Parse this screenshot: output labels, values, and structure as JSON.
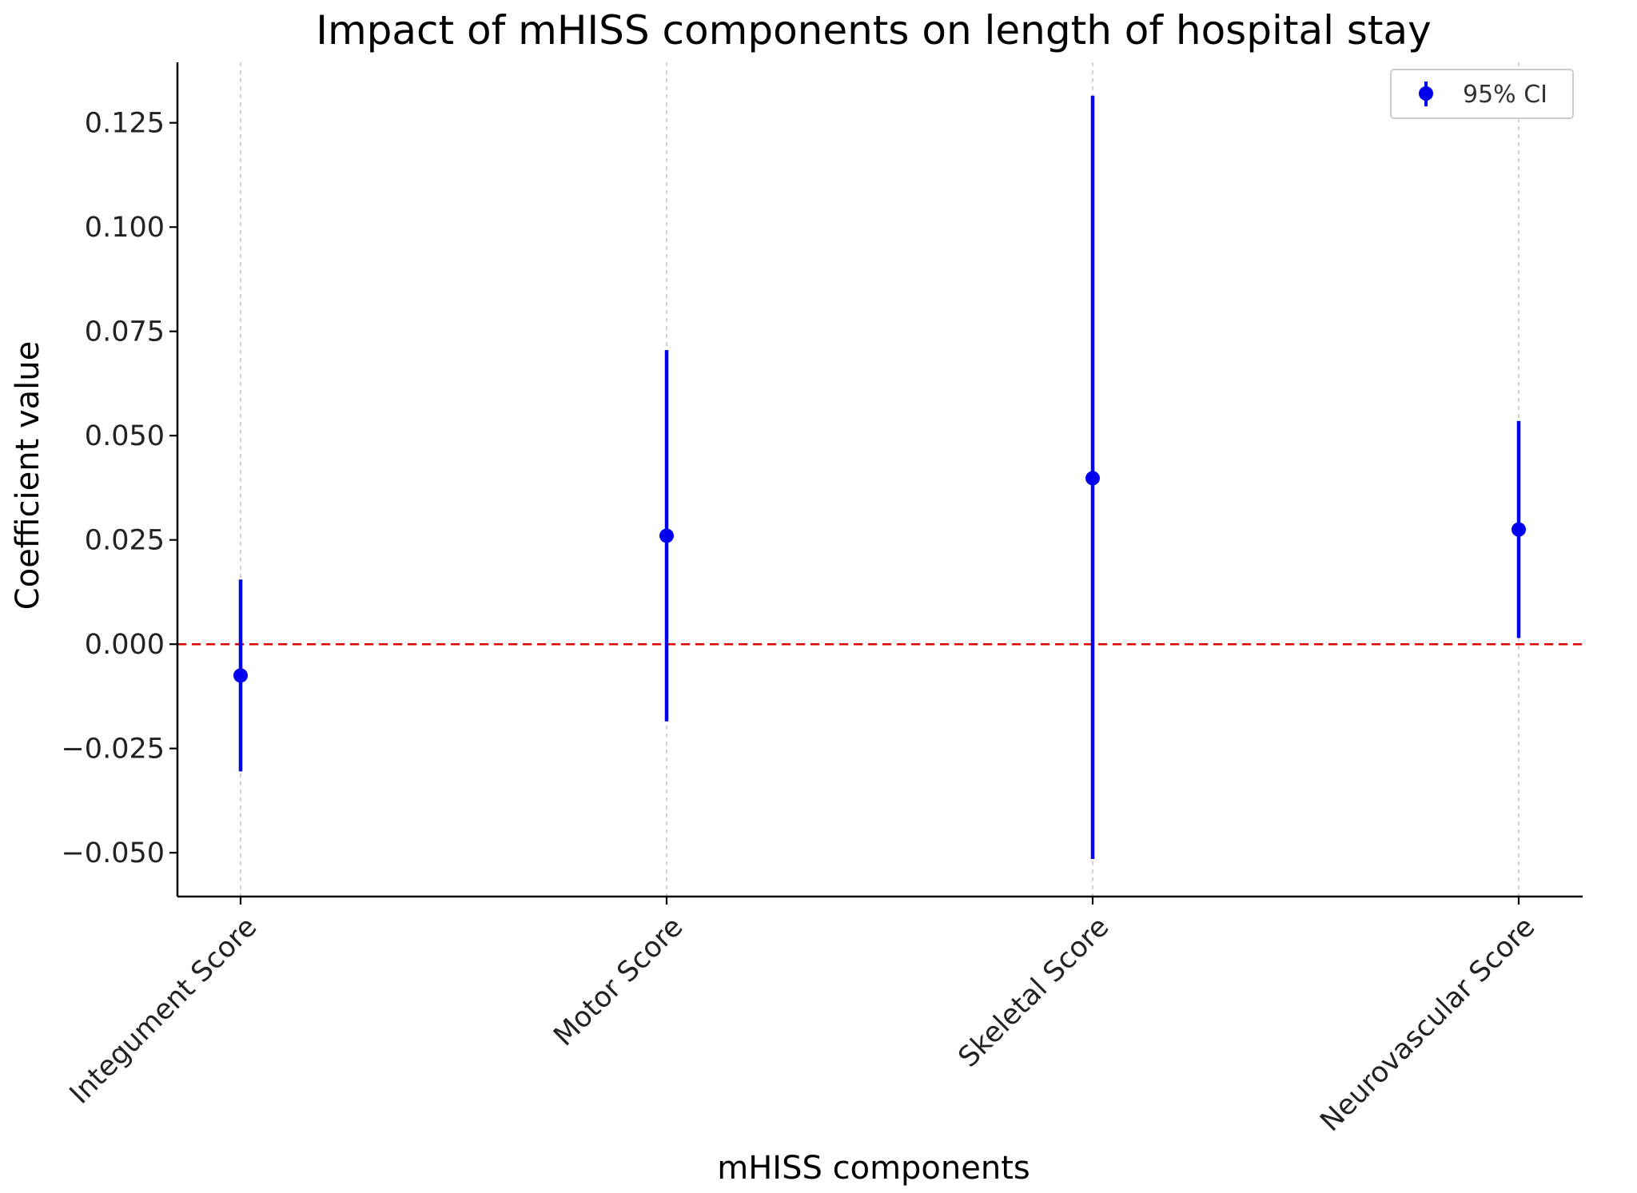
{
  "chart_data": {
    "type": "scatter",
    "title": "Impact of mHISS components on length of hospital stay",
    "xlabel": "mHISS components",
    "ylabel": "Coefficient value",
    "categories": [
      "Integument Score",
      "Motor Score",
      "Skeletal Score",
      "Neurovascular Score"
    ],
    "series": [
      {
        "name": "95% CI",
        "values": [
          -0.0075,
          0.026,
          0.0398,
          0.0275
        ],
        "ci_lower": [
          -0.0305,
          -0.0185,
          -0.0515,
          0.0015
        ],
        "ci_upper": [
          0.0155,
          0.0705,
          0.1315,
          0.0535
        ],
        "color": "#0000ee"
      }
    ],
    "ylim": [
      -0.0605,
      0.1395
    ],
    "yticks": [
      -0.05,
      -0.025,
      0.0,
      0.025,
      0.05,
      0.075,
      0.1,
      0.125
    ],
    "ytick_labels": [
      "−0.050",
      "−0.025",
      "0.000",
      "0.025",
      "0.050",
      "0.075",
      "0.100",
      "0.125"
    ],
    "reference_line": {
      "y": 0.0,
      "color": "#dd0000",
      "style": "dashed"
    },
    "grid": {
      "x": true,
      "y": false
    },
    "legend_position": "top-right",
    "colors": {
      "marker": "#0000ee",
      "reference": "#dd0000",
      "grid": "#c8c8c8",
      "axis": "#000000"
    }
  }
}
